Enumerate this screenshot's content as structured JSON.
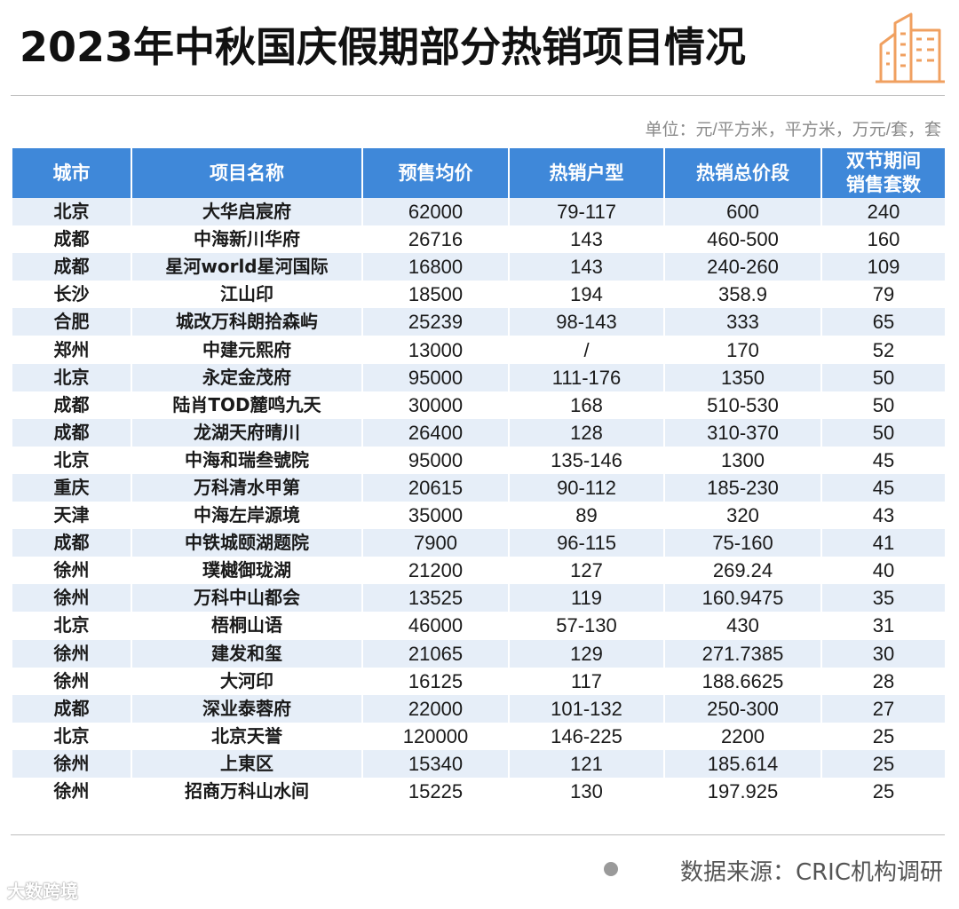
{
  "title": "2023年中秋国庆假期部分热销项目情况",
  "unit": "单位：元/平方米，平方米，万元/套，套",
  "source": "数据来源：CRIC机构调研",
  "watermark": "大数跨境",
  "colors": {
    "header_bg": "#3f88d9",
    "stripe": "#e6eef8",
    "logo": "#f0a060"
  },
  "icons": {
    "logo": "building-icon",
    "bullet": "dot-icon"
  },
  "chart_data": {
    "type": "table",
    "columns": [
      "城市",
      "项目名称",
      "预售均价",
      "热销户型",
      "热销总价段",
      "双节期间\n销售套数"
    ],
    "rows": [
      [
        "北京",
        "大华启宸府",
        "62000",
        "79-117",
        "600",
        "240"
      ],
      [
        "成都",
        "中海新川华府",
        "26716",
        "143",
        "460-500",
        "160"
      ],
      [
        "成都",
        "星河world星河国际",
        "16800",
        "143",
        "240-260",
        "109"
      ],
      [
        "长沙",
        "江山印",
        "18500",
        "194",
        "358.9",
        "79"
      ],
      [
        "合肥",
        "城改万科朗拾森屿",
        "25239",
        "98-143",
        "333",
        "65"
      ],
      [
        "郑州",
        "中建元熙府",
        "13000",
        "/",
        "170",
        "52"
      ],
      [
        "北京",
        "永定金茂府",
        "95000",
        "111-176",
        "1350",
        "50"
      ],
      [
        "成都",
        "陆肖TOD麓鸣九天",
        "30000",
        "168",
        "510-530",
        "50"
      ],
      [
        "成都",
        "龙湖天府晴川",
        "26400",
        "128",
        "310-370",
        "50"
      ],
      [
        "北京",
        "中海和瑞叁號院",
        "95000",
        "135-146",
        "1300",
        "45"
      ],
      [
        "重庆",
        "万科清水甲第",
        "20615",
        "90-112",
        "185-230",
        "45"
      ],
      [
        "天津",
        "中海左岸源境",
        "35000",
        "89",
        "320",
        "43"
      ],
      [
        "成都",
        "中铁城颐湖题院",
        "7900",
        "96-115",
        "75-160",
        "41"
      ],
      [
        "徐州",
        "璞樾御珑湖",
        "21200",
        "127",
        "269.24",
        "40"
      ],
      [
        "徐州",
        "万科中山都会",
        "13525",
        "119",
        "160.9475",
        "35"
      ],
      [
        "北京",
        "梧桐山语",
        "46000",
        "57-130",
        "430",
        "31"
      ],
      [
        "徐州",
        "建发和玺",
        "21065",
        "129",
        "271.7385",
        "30"
      ],
      [
        "徐州",
        "大河印",
        "16125",
        "117",
        "188.6625",
        "28"
      ],
      [
        "成都",
        "深业泰蓉府",
        "22000",
        "101-132",
        "250-300",
        "27"
      ],
      [
        "北京",
        "北京天誉",
        "120000",
        "146-225",
        "2200",
        "25"
      ],
      [
        "徐州",
        "上東区",
        "15340",
        "121",
        "185.614",
        "25"
      ],
      [
        "徐州",
        "招商万科山水间",
        "15225",
        "130",
        "197.925",
        "25"
      ]
    ]
  }
}
